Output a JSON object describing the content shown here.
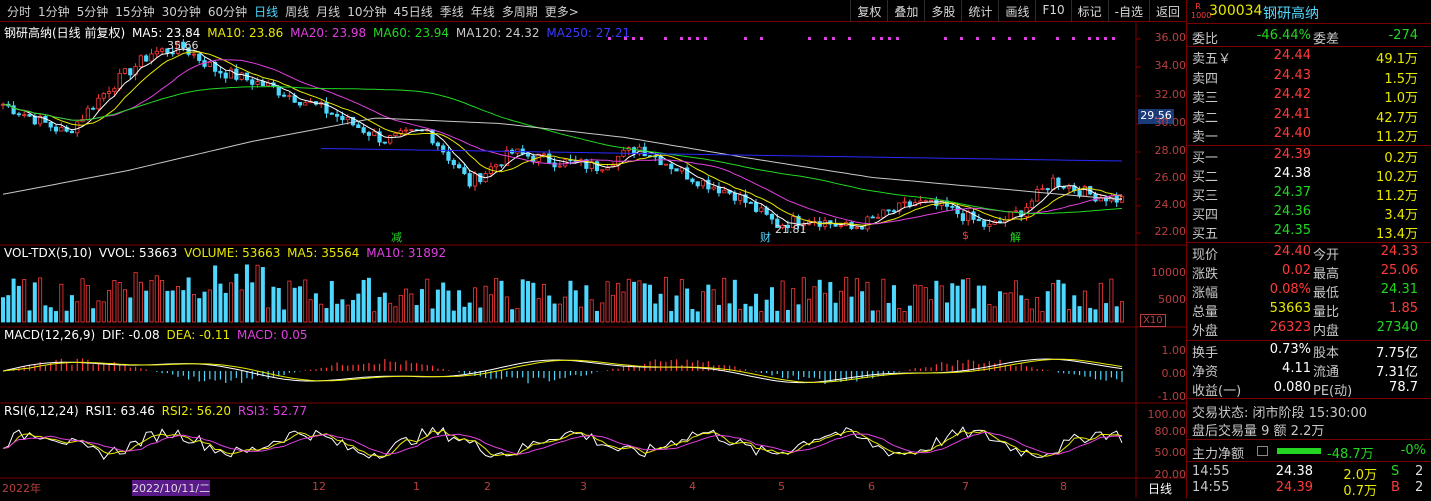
{
  "periods": [
    "分时",
    "1分钟",
    "5分钟",
    "15分钟",
    "30分钟",
    "60分钟",
    "日线",
    "周线",
    "月线",
    "10分钟",
    "45日线",
    "季线",
    "年线",
    "多周期",
    "更多>"
  ],
  "active_period": "日线",
  "tools": [
    "复权",
    "叠加",
    "多股",
    "统计",
    "画线",
    "F10",
    "标记",
    "-自选",
    "返回"
  ],
  "colors": {
    "up": "#ff3a3a",
    "down": "#22d622",
    "cyan": "#4fd8ff",
    "yellow": "#e8e800",
    "pink": "#e040e0",
    "green_line": "#22d622",
    "white": "#ffffff",
    "blue": "#2a2aff"
  },
  "main_legend": {
    "name": "钢研高纳(日线 前复权)",
    "ma5": "MA5: 23.84",
    "ma10": "MA10: 23.86",
    "ma20": "MA20: 23.98",
    "ma60": "MA60: 23.94",
    "ma120": "MA120: 24.32",
    "ma250": "MA250: 27.21"
  },
  "price_axis": [
    "36.00",
    "34.00",
    "32.00",
    "30.00",
    "28.00",
    "26.00",
    "24.00",
    "22.00"
  ],
  "current_price_tag": "29.56",
  "high_label": "35.66",
  "low_label": "21.81",
  "event_marks": [
    "减",
    "财",
    "$",
    "解"
  ],
  "vol_legend": {
    "name": "VOL-TDX(5,10)",
    "vvol": "VVOL: 53663",
    "volume": "VOLUME: 53663",
    "ma5": "MA5: 35564",
    "ma10": "MA10: 31892"
  },
  "vol_axis": [
    "10000",
    "5000"
  ],
  "vol_unit": "X10",
  "macd_legend": {
    "name": "MACD(12,26,9)",
    "dif": "DIF: -0.08",
    "dea": "DEA: -0.11",
    "macd": "MACD: 0.05"
  },
  "macd_axis": [
    "1.00",
    "0.00",
    "-1.00"
  ],
  "rsi_legend": {
    "name": "RSI(6,12,24)",
    "rsi1": "RSI1: 63.46",
    "rsi2": "RSI2: 56.20",
    "rsi3": "RSI3: 52.77"
  },
  "rsi_axis": [
    "100.00",
    "80.00",
    "50.00",
    "20.00"
  ],
  "dates": [
    {
      "t": "2022年"
    },
    {
      "t": "2022/10/11/二"
    },
    {
      "t": "12"
    },
    {
      "t": "1"
    },
    {
      "t": "2"
    },
    {
      "t": "3"
    },
    {
      "t": "4"
    },
    {
      "t": "5"
    },
    {
      "t": "6"
    },
    {
      "t": "7"
    },
    {
      "t": "8"
    }
  ],
  "period_tag": "日线",
  "quote": {
    "code": "300034",
    "name": "钢研高纳",
    "badge": "R 1000",
    "weibi_label": "委比",
    "weibi": "-46.44%",
    "weicha_label": "委差",
    "weicha": "-274",
    "asks": [
      {
        "l": "卖五",
        "p": "24.44",
        "v": "49.1万",
        "mark": "￥"
      },
      {
        "l": "卖四",
        "p": "24.43",
        "v": "1.5万"
      },
      {
        "l": "卖三",
        "p": "24.42",
        "v": "1.0万"
      },
      {
        "l": "卖二",
        "p": "24.41",
        "v": "42.7万"
      },
      {
        "l": "卖一",
        "p": "24.40",
        "v": "11.2万"
      }
    ],
    "bids": [
      {
        "l": "买一",
        "p": "24.39",
        "v": "0.2万"
      },
      {
        "l": "买二",
        "p": "24.38",
        "v": "10.2万"
      },
      {
        "l": "买三",
        "p": "24.37",
        "v": "11.2万"
      },
      {
        "l": "买四",
        "p": "24.36",
        "v": "3.4万"
      },
      {
        "l": "买五",
        "p": "24.35",
        "v": "13.4万"
      }
    ],
    "stats": [
      {
        "a": "现价",
        "b": "24.40",
        "c": "今开",
        "d": "24.33",
        "bc": "red",
        "dc": "red"
      },
      {
        "a": "涨跌",
        "b": "0.02",
        "c": "最高",
        "d": "25.06",
        "bc": "red",
        "dc": "red"
      },
      {
        "a": "涨幅",
        "b": "0.08%",
        "c": "最低",
        "d": "24.31",
        "bc": "red",
        "dc": "green"
      },
      {
        "a": "总量",
        "b": "53663",
        "c": "量比",
        "d": "1.85",
        "bc": "yellow",
        "dc": "red"
      },
      {
        "a": "外盘",
        "b": "26323",
        "c": "内盘",
        "d": "27340",
        "bc": "red",
        "dc": "green"
      }
    ],
    "stats2": [
      {
        "a": "换手",
        "b": "0.73%",
        "c": "股本",
        "d": "7.75亿"
      },
      {
        "a": "净资",
        "b": "4.11",
        "c": "流通",
        "d": "7.31亿"
      },
      {
        "a": "收益(一)",
        "b": "0.080",
        "c": "PE(动)",
        "d": "78.7"
      }
    ],
    "trade_status": "交易状态: 闭市阶段 15:30:00",
    "after_hours": "盘后交易量 9 额 2.2万",
    "main_flow_label": "主力净额",
    "main_flow": "-48.7万",
    "main_flow_pct": "-0%",
    "ticks": [
      {
        "t": "14:55",
        "p": "24.38",
        "v": "2.0万",
        "s": "S",
        "n": "2"
      },
      {
        "t": "14:55",
        "p": "24.39",
        "v": "0.7万",
        "s": "B",
        "n": "2"
      }
    ]
  }
}
